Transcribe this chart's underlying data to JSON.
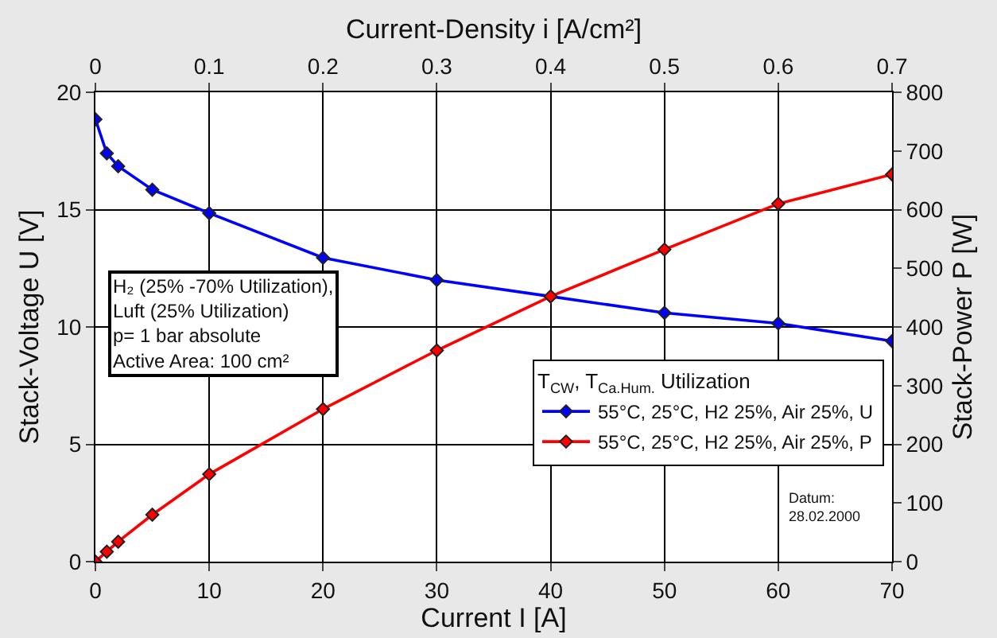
{
  "chart_data": {
    "type": "line",
    "xlabel": "Current I [A]",
    "ylabel": "Stack-Voltage U [V]",
    "y2label": "Stack-Power P [W]",
    "x2label": "Current-Density i [A/cm²]",
    "x": [
      0,
      1,
      2,
      5,
      10,
      20,
      30,
      40,
      50,
      60,
      70
    ],
    "series": [
      {
        "name": "55°C, 25°C, H2 25%, Air 25%, U",
        "color": "#0000ff",
        "values": [
          18.85,
          17.4,
          16.85,
          15.85,
          14.85,
          12.95,
          12.0,
          11.3,
          10.6,
          10.15,
          9.4
        ]
      },
      {
        "name": "55°C, 25°C, H2 25%, Air 25%, P",
        "color": "#ff0000",
        "axis": "y2",
        "values": [
          0,
          17,
          34,
          80,
          149,
          260,
          360,
          452,
          532,
          610,
          660
        ]
      }
    ],
    "xlim": [
      0,
      70
    ],
    "xticks": [
      0,
      10,
      20,
      30,
      40,
      50,
      60,
      70
    ],
    "x2lim": [
      0,
      0.7
    ],
    "x2ticks": [
      0,
      0.1,
      0.2,
      0.3,
      0.4,
      0.5,
      0.6,
      0.7
    ],
    "ylim": [
      0,
      20
    ],
    "yticks": [
      0,
      5,
      10,
      15,
      20
    ],
    "y2lim": [
      0,
      800
    ],
    "y2ticks": [
      0,
      100,
      200,
      300,
      400,
      500,
      600,
      700,
      800
    ],
    "legend_title": "T$_{CW}$, T$_{Ca.Hum.}$ Utilization",
    "annotations": [
      "H₂ (25% -70% Utilization),\nLuft (25% Utilization)\np= 1 bar absolute\nActive Area: 100 cm²",
      "Datum:\n28.02.2000"
    ],
    "grid": true,
    "legend": "right",
    "marker": "diamond",
    "line_style": "solid"
  }
}
